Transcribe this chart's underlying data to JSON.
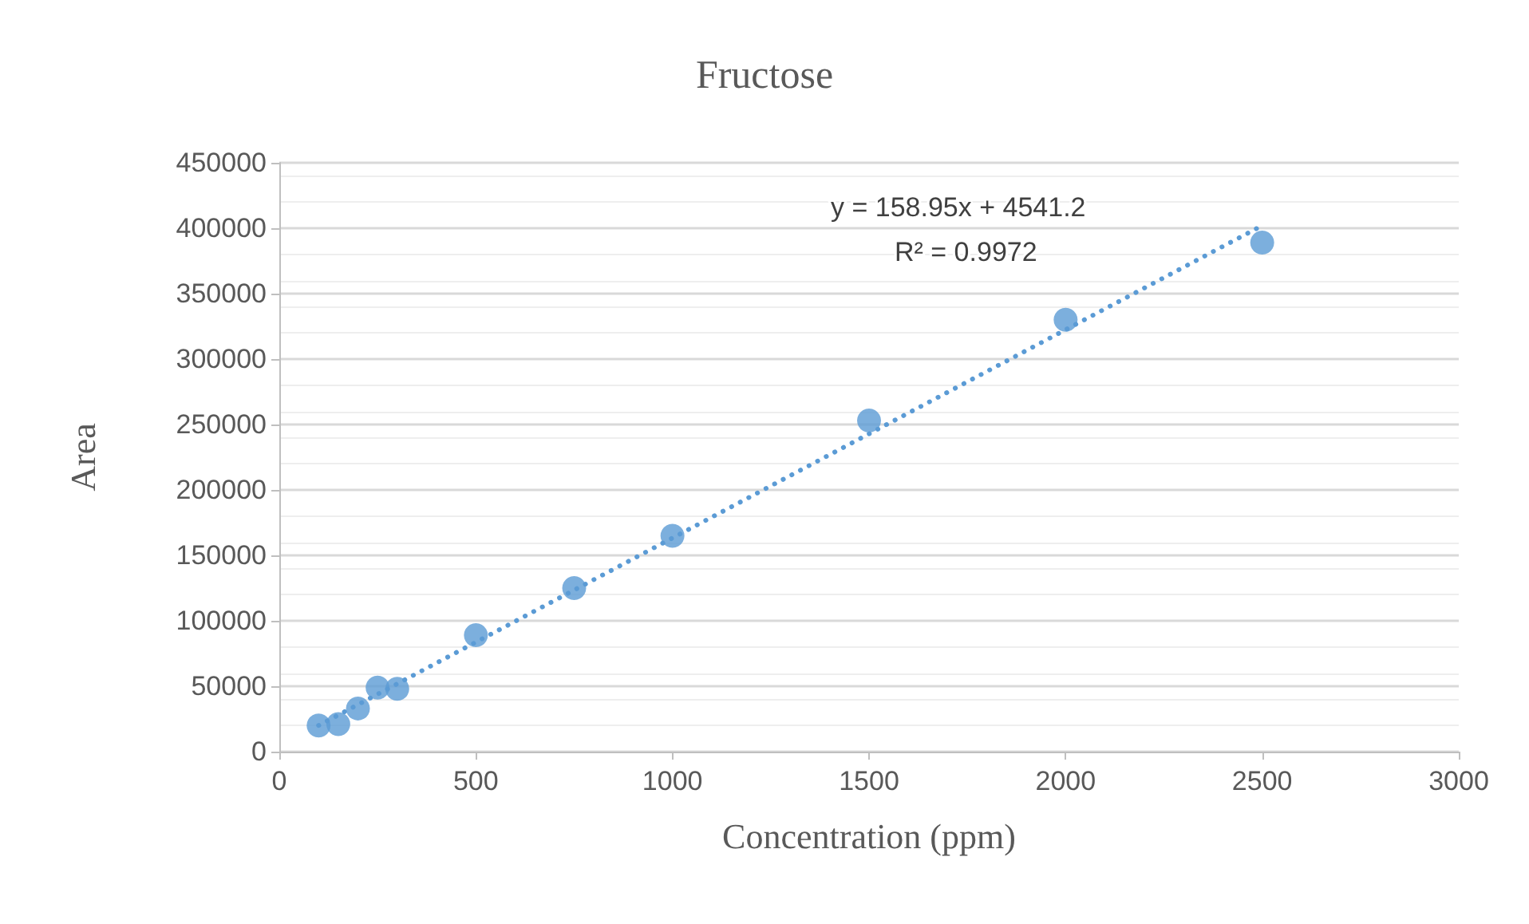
{
  "chart_data": {
    "type": "scatter",
    "title": "Fructose",
    "xlabel": "Concentration (ppm)",
    "ylabel": "Area",
    "xlim": [
      0,
      3000
    ],
    "xticks": [
      0,
      500,
      1000,
      1500,
      2000,
      2500,
      3000
    ],
    "ylim": [
      0,
      450000
    ],
    "yticks": [
      0,
      50000,
      100000,
      150000,
      200000,
      250000,
      300000,
      350000,
      400000,
      450000
    ],
    "grid": "y",
    "marker": "circle",
    "series": [
      {
        "color": "#5b9bd5",
        "x": [
          100,
          150,
          200,
          250,
          300,
          500,
          750,
          1000,
          1500,
          2000,
          2500
        ],
        "values": [
          20000,
          21000,
          33000,
          49000,
          48000,
          89000,
          125000,
          165000,
          253000,
          330000,
          389000
        ]
      },
      {
        "type": "line",
        "color": "#5b9bd5",
        "line_style": "dotted",
        "marker": "none",
        "x": [
          100,
          2500
        ],
        "values": [
          20000,
          402000
        ]
      }
    ],
    "annotations": [
      "y = 158.95x + 4541.2",
      "R² = 0.9972"
    ]
  }
}
